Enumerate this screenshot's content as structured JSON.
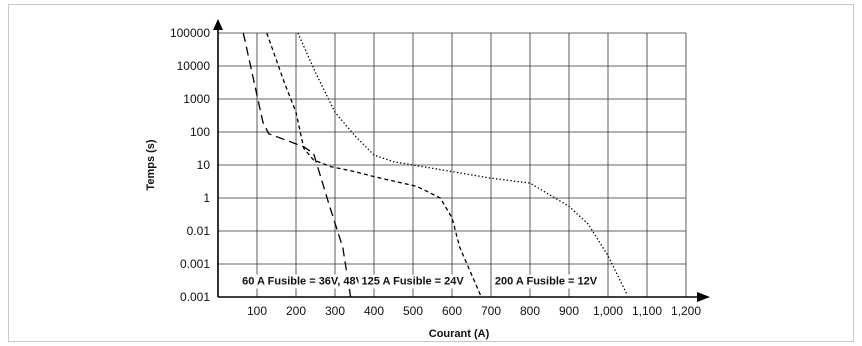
{
  "chart_data": {
    "type": "line",
    "title": "",
    "xlabel": "Courant (A)",
    "ylabel": "Temps (s)",
    "xlim": [
      0,
      1200
    ],
    "x_ticks": [
      "100",
      "200",
      "300",
      "400",
      "500",
      "600",
      "700",
      "800",
      "900",
      "1,000",
      "1,100",
      "1,200"
    ],
    "x_tick_values": [
      100,
      200,
      300,
      400,
      500,
      600,
      700,
      800,
      900,
      1000,
      1100,
      1200
    ],
    "y_ticks": [
      "100000",
      "10000",
      "1000",
      "100",
      "10",
      "1",
      "0.01",
      "0.001",
      "0.001"
    ],
    "y_scale": "log-category",
    "grid": true,
    "series": [
      {
        "name": "60 A Fusible = 36V, 48V",
        "style": "long-dash",
        "label_at": [
          62,
          0.5
        ],
        "points": [
          [
            65,
            8
          ],
          [
            115,
            5.3
          ],
          [
            130,
            4.95
          ],
          [
            220,
            4.55
          ],
          [
            245,
            4.35
          ],
          [
            285,
            2.8
          ],
          [
            320,
            1.5
          ],
          [
            340,
            0
          ]
        ]
      },
      {
        "name": "125 A Fusible = 24V",
        "style": "short-dash",
        "label_at": [
          368,
          0.5
        ],
        "points": [
          [
            125,
            8
          ],
          [
            170,
            6.5
          ],
          [
            200,
            5.6
          ],
          [
            220,
            4.5
          ],
          [
            245,
            4.15
          ],
          [
            290,
            3.95
          ],
          [
            350,
            3.8
          ],
          [
            400,
            3.65
          ],
          [
            510,
            3.35
          ],
          [
            570,
            3.0
          ],
          [
            600,
            2.4
          ],
          [
            620,
            1.5
          ],
          [
            675,
            0
          ]
        ]
      },
      {
        "name": "200 A Fusible = 12V",
        "style": "dotted",
        "label_at": [
          710,
          0.5
        ],
        "points": [
          [
            205,
            8
          ],
          [
            250,
            6.8
          ],
          [
            300,
            5.6
          ],
          [
            350,
            4.9
          ],
          [
            400,
            4.3
          ],
          [
            450,
            4.1
          ],
          [
            500,
            4.0
          ],
          [
            600,
            3.8
          ],
          [
            700,
            3.6
          ],
          [
            800,
            3.45
          ],
          [
            900,
            2.75
          ],
          [
            950,
            2.2
          ],
          [
            1000,
            1.25
          ],
          [
            1050,
            0.05
          ]
        ]
      }
    ]
  }
}
